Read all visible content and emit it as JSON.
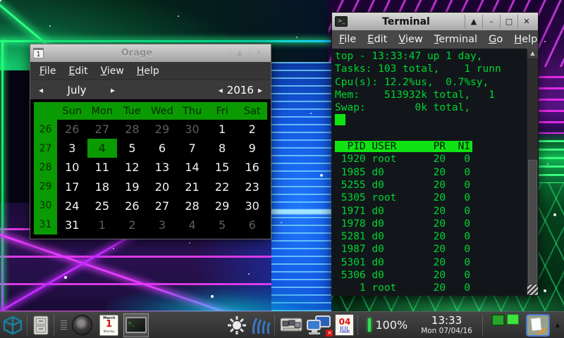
{
  "orage_window": {
    "title": "Orage",
    "menu": [
      {
        "label": "File"
      },
      {
        "label": "Edit"
      },
      {
        "label": "View"
      },
      {
        "label": "Help"
      }
    ],
    "nav": {
      "prev": "◂",
      "next": "▸",
      "month": "July",
      "year": "2016"
    },
    "controls": [
      "▲",
      "✕"
    ],
    "calendar": {
      "day_headers": [
        "Sun",
        "Mon",
        "Tue",
        "Wed",
        "Thu",
        "Fri",
        "Sat"
      ],
      "weeks": [
        {
          "num": "26",
          "days": [
            {
              "d": "26",
              "muted": true
            },
            {
              "d": "27",
              "muted": true
            },
            {
              "d": "28",
              "muted": true
            },
            {
              "d": "29",
              "muted": true
            },
            {
              "d": "30",
              "muted": true
            },
            {
              "d": "1"
            },
            {
              "d": "2"
            }
          ]
        },
        {
          "num": "27",
          "days": [
            {
              "d": "3"
            },
            {
              "d": "4",
              "selected": true
            },
            {
              "d": "5"
            },
            {
              "d": "6"
            },
            {
              "d": "7"
            },
            {
              "d": "8"
            },
            {
              "d": "9"
            }
          ]
        },
        {
          "num": "28",
          "days": [
            {
              "d": "10"
            },
            {
              "d": "11"
            },
            {
              "d": "12"
            },
            {
              "d": "13"
            },
            {
              "d": "14"
            },
            {
              "d": "15"
            },
            {
              "d": "16"
            }
          ]
        },
        {
          "num": "29",
          "days": [
            {
              "d": "17"
            },
            {
              "d": "18"
            },
            {
              "d": "19"
            },
            {
              "d": "20"
            },
            {
              "d": "21"
            },
            {
              "d": "22"
            },
            {
              "d": "23"
            }
          ]
        },
        {
          "num": "30",
          "days": [
            {
              "d": "24"
            },
            {
              "d": "25"
            },
            {
              "d": "26"
            },
            {
              "d": "27"
            },
            {
              "d": "28"
            },
            {
              "d": "29"
            },
            {
              "d": "30"
            }
          ]
        },
        {
          "num": "31",
          "days": [
            {
              "d": "31"
            },
            {
              "d": "1",
              "muted": true
            },
            {
              "d": "2",
              "muted": true
            },
            {
              "d": "3",
              "muted": true
            },
            {
              "d": "4",
              "muted": true
            },
            {
              "d": "5",
              "muted": true
            },
            {
              "d": "6",
              "muted": true
            }
          ]
        }
      ]
    }
  },
  "terminal_window": {
    "title": "Terminal",
    "app_icon_glyph": ">_",
    "menu": [
      {
        "label": "File"
      },
      {
        "label": "Edit"
      },
      {
        "label": "View"
      },
      {
        "label": "Terminal"
      },
      {
        "label": "Go"
      },
      {
        "label": "Help"
      }
    ],
    "controls": [
      "▲",
      "–",
      "□",
      "✕"
    ],
    "summary_lines": [
      "top - 13:33:47 up 1 day,",
      "Tasks: 103 total,    1 runn",
      "Cpu(s): 12.2%us,  0.7%sy,",
      "Mem:    513932k total,   1",
      "Swap:        0k total,"
    ],
    "columns": {
      "pid": "PID",
      "user": "USER",
      "pr": "PR",
      "ni": "NI"
    },
    "processes": [
      {
        "pid": "1920",
        "user": "root",
        "pr": "20",
        "ni": "0"
      },
      {
        "pid": "1985",
        "user": "d0",
        "pr": "20",
        "ni": "0"
      },
      {
        "pid": "5255",
        "user": "d0",
        "pr": "20",
        "ni": "0"
      },
      {
        "pid": "5305",
        "user": "root",
        "pr": "20",
        "ni": "0"
      },
      {
        "pid": "1971",
        "user": "d0",
        "pr": "20",
        "ni": "0"
      },
      {
        "pid": "1978",
        "user": "d0",
        "pr": "20",
        "ni": "0"
      },
      {
        "pid": "5281",
        "user": "d0",
        "pr": "20",
        "ni": "0"
      },
      {
        "pid": "1987",
        "user": "d0",
        "pr": "20",
        "ni": "0"
      },
      {
        "pid": "5301",
        "user": "d0",
        "pr": "20",
        "ni": "0"
      },
      {
        "pid": "5306",
        "user": "d0",
        "pr": "20",
        "ni": "0"
      },
      {
        "pid": "1",
        "user": "root",
        "pr": "20",
        "ni": "0"
      }
    ],
    "scroll_up_glyph": "▲"
  },
  "taskbar": {
    "left_icons": [
      "cube-icon",
      "file-cabinet-icon",
      "drag-handle-icon",
      "lens-icon",
      "calendar-launcher-icon",
      "terminal-launcher-icon"
    ],
    "right_icons": [
      "sun-icon",
      "wireless-icon",
      "workgroup-icon",
      "monitors-offline-icon",
      "date-icon",
      "notes-icon"
    ],
    "calendar_launcher": {
      "month": "March",
      "day": "1",
      "weekday": "Monday"
    },
    "terminal_launcher_glyph": ">_",
    "tray_date": {
      "day": "04",
      "month": "JUL"
    },
    "volume_level": "100%",
    "clock": {
      "time": "13:33",
      "date": "Mon 07/04/16"
    },
    "workspaces": 2,
    "panel_arrow_glyph": "▲"
  },
  "colors": {
    "calendar_green": "#0a9a02",
    "terminal_green": "#00d530",
    "highlight_green": "#0fe312",
    "laser_magenta": "#e23bff",
    "laser_green": "#27ff7d",
    "laser_cyan": "#19c7ff"
  }
}
